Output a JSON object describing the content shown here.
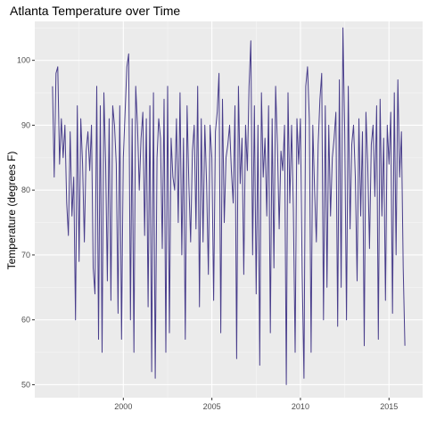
{
  "chart_data": {
    "type": "line",
    "title": "Atlanta Temperature over Time",
    "xlabel": "",
    "ylabel": "Temperature (degrees F)",
    "xlim": [
      1995.0,
      2016.9
    ],
    "ylim": [
      48.0,
      106.0
    ],
    "x_ticks": [
      2000,
      2005,
      2010,
      2015
    ],
    "y_ticks": [
      50,
      60,
      70,
      80,
      90,
      100
    ],
    "grid": true,
    "legend": "none",
    "series": [
      {
        "color": "#483d8b",
        "x": [
          1996.0,
          1996.1,
          1996.2,
          1996.3,
          1996.4,
          1996.5,
          1996.6,
          1996.7,
          1996.8,
          1996.9,
          1997.0,
          1997.1,
          1997.2,
          1997.3,
          1997.4,
          1997.5,
          1997.6,
          1997.7,
          1997.8,
          1997.9,
          1998.0,
          1998.1,
          1998.2,
          1998.3,
          1998.4,
          1998.5,
          1998.6,
          1998.7,
          1998.8,
          1998.9,
          1999.0,
          1999.1,
          1999.2,
          1999.3,
          1999.4,
          1999.5,
          1999.6,
          1999.7,
          1999.8,
          1999.9,
          2000.0,
          2000.1,
          2000.2,
          2000.3,
          2000.4,
          2000.5,
          2000.6,
          2000.7,
          2000.8,
          2000.9,
          2001.0,
          2001.1,
          2001.2,
          2001.3,
          2001.4,
          2001.5,
          2001.6,
          2001.7,
          2001.8,
          2001.9,
          2002.0,
          2002.1,
          2002.2,
          2002.3,
          2002.4,
          2002.5,
          2002.6,
          2002.7,
          2002.8,
          2002.9,
          2003.0,
          2003.1,
          2003.2,
          2003.3,
          2003.4,
          2003.5,
          2003.6,
          2003.7,
          2003.8,
          2003.9,
          2004.0,
          2004.1,
          2004.2,
          2004.3,
          2004.4,
          2004.5,
          2004.6,
          2004.7,
          2004.8,
          2004.9,
          2005.0,
          2005.1,
          2005.2,
          2005.3,
          2005.4,
          2005.5,
          2005.6,
          2005.7,
          2005.8,
          2005.9,
          2006.0,
          2006.1,
          2006.2,
          2006.3,
          2006.4,
          2006.5,
          2006.6,
          2006.7,
          2006.8,
          2006.9,
          2007.0,
          2007.1,
          2007.2,
          2007.3,
          2007.4,
          2007.5,
          2007.6,
          2007.7,
          2007.8,
          2007.9,
          2008.0,
          2008.1,
          2008.2,
          2008.3,
          2008.4,
          2008.5,
          2008.6,
          2008.7,
          2008.8,
          2008.9,
          2009.0,
          2009.1,
          2009.2,
          2009.3,
          2009.4,
          2009.5,
          2009.6,
          2009.7,
          2009.8,
          2009.9,
          2010.0,
          2010.1,
          2010.2,
          2010.3,
          2010.4,
          2010.5,
          2010.6,
          2010.7,
          2010.8,
          2010.9,
          2011.0,
          2011.1,
          2011.2,
          2011.3,
          2011.4,
          2011.5,
          2011.6,
          2011.7,
          2011.8,
          2011.9,
          2012.0,
          2012.1,
          2012.2,
          2012.3,
          2012.4,
          2012.5,
          2012.6,
          2012.7,
          2012.8,
          2012.9,
          2013.0,
          2013.1,
          2013.2,
          2013.3,
          2013.4,
          2013.5,
          2013.6,
          2013.7,
          2013.8,
          2013.9,
          2014.0,
          2014.1,
          2014.2,
          2014.3,
          2014.4,
          2014.5,
          2014.6,
          2014.7,
          2014.8,
          2014.9,
          2015.0,
          2015.1,
          2015.2,
          2015.3,
          2015.4,
          2015.5,
          2015.6,
          2015.7,
          2015.8,
          2015.9
        ],
        "values": [
          96,
          82,
          98,
          99,
          84,
          91,
          85,
          90,
          78,
          73,
          89,
          76,
          82,
          60,
          93,
          69,
          91,
          84,
          72,
          86,
          89,
          83,
          90,
          68,
          64,
          96,
          57,
          93,
          55,
          95,
          84,
          66,
          91,
          63,
          93,
          90,
          84,
          61,
          93,
          57,
          85,
          92,
          99,
          101,
          60,
          91,
          55,
          96,
          90,
          80,
          88,
          92,
          73,
          91,
          62,
          93,
          52,
          95,
          51,
          85,
          91,
          88,
          71,
          94,
          55,
          96,
          58,
          88,
          82,
          80,
          91,
          75,
          95,
          70,
          88,
          57,
          93,
          81,
          72,
          86,
          90,
          74,
          96,
          62,
          91,
          72,
          90,
          81,
          67,
          90,
          85,
          63,
          89,
          92,
          98,
          58,
          94,
          75,
          85,
          87,
          90,
          83,
          78,
          93,
          54,
          96,
          81,
          88,
          67,
          90,
          83,
          96,
          103,
          70,
          93,
          64,
          90,
          53,
          95,
          82,
          88,
          76,
          93,
          58,
          91,
          68,
          96,
          87,
          74,
          86,
          83,
          90,
          50,
          95,
          78,
          90,
          77,
          55,
          91,
          84,
          91,
          67,
          51,
          96,
          99,
          91,
          55,
          90,
          80,
          72,
          87,
          94,
          98,
          60,
          93,
          65,
          90,
          76,
          85,
          88,
          92,
          59,
          97,
          65,
          105,
          89,
          60,
          96,
          74,
          87,
          90,
          82,
          66,
          91,
          76,
          89,
          56,
          92,
          84,
          71,
          87,
          90,
          79,
          93,
          57,
          94,
          76,
          88,
          63,
          90,
          84,
          92,
          61,
          95,
          70,
          97,
          82,
          89,
          68,
          56
        ]
      }
    ]
  }
}
